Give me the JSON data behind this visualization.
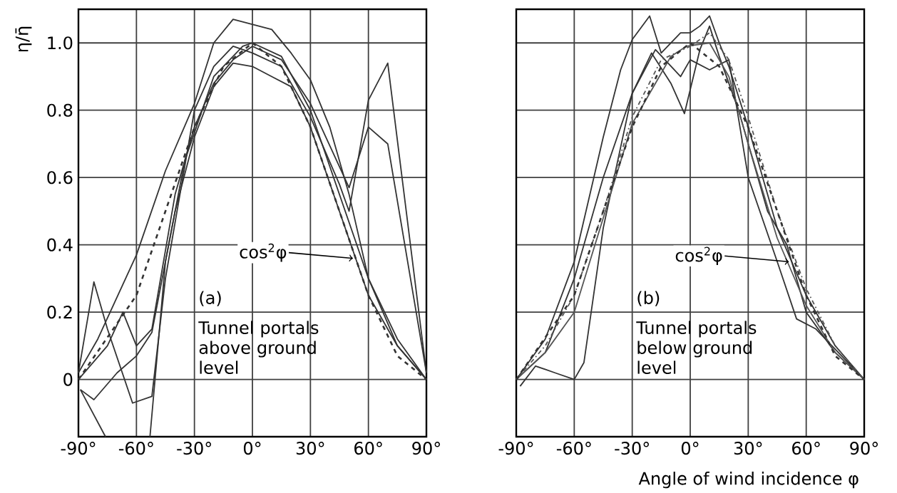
{
  "chart_data": [
    {
      "type": "line",
      "ylabel": "η/η̄",
      "xlim": [
        -90,
        90
      ],
      "ylim": [
        -0.17,
        1.1
      ],
      "xticks": [
        {
          "value": -90,
          "label": "-90°"
        },
        {
          "value": -60,
          "label": "-60°"
        },
        {
          "value": -30,
          "label": "-30°"
        },
        {
          "value": 0,
          "label": "0°"
        },
        {
          "value": 30,
          "label": "30°"
        },
        {
          "value": 60,
          "label": "60°"
        },
        {
          "value": 90,
          "label": "90°"
        }
      ],
      "yticks": [
        0,
        {
          "value": 0.2,
          "label": "0.2"
        },
        {
          "value": 0.4,
          "label": "0.4"
        },
        {
          "value": 0.6,
          "label": "0.6"
        },
        {
          "value": 0.8,
          "label": "0.8"
        },
        {
          "value": 1,
          "label": "1.0"
        }
      ],
      "grid": true,
      "series": [
        {
          "color": "#333333",
          "x": [
            -90,
            -80,
            -60,
            -45,
            -30,
            -20,
            -10,
            10,
            20,
            30,
            40,
            50,
            60,
            75,
            90
          ],
          "values": [
            0.02,
            0.12,
            0.37,
            0.62,
            0.82,
            1.0,
            1.07,
            1.04,
            0.97,
            0.89,
            0.75,
            0.55,
            0.3,
            0.12,
            0
          ]
        },
        {
          "color": "#333333",
          "x": [
            -90,
            -82,
            -75,
            -62,
            -52,
            -45,
            -30,
            -20,
            -10,
            0,
            15,
            30,
            45,
            50,
            60,
            70,
            90
          ],
          "values": [
            0.02,
            0.29,
            0.15,
            -0.07,
            -0.05,
            0.3,
            0.8,
            0.93,
            0.99,
            0.97,
            0.93,
            0.78,
            0.58,
            0.5,
            0.83,
            0.94,
            0.02
          ]
        },
        {
          "color": "#333333",
          "x": [
            -90,
            -75,
            -67,
            -60,
            -52,
            -40,
            -30,
            -20,
            -10,
            0,
            15,
            30,
            50,
            60,
            70,
            90
          ],
          "values": [
            0,
            0.1,
            0.2,
            0.1,
            0.15,
            0.55,
            0.75,
            0.88,
            0.95,
            0.99,
            0.95,
            0.82,
            0.57,
            0.75,
            0.7,
            0.02
          ]
        },
        {
          "color": "#333333",
          "x": [
            -89,
            -82,
            -70,
            -60,
            -52,
            -40,
            -30,
            -20,
            -10,
            0,
            10,
            20,
            30,
            45,
            60,
            75,
            90
          ],
          "values": [
            -0.03,
            -0.06,
            0.02,
            0.07,
            0.14,
            0.5,
            0.72,
            0.87,
            0.94,
            0.93,
            0.9,
            0.87,
            0.75,
            0.5,
            0.25,
            0.1,
            0
          ]
        },
        {
          "color": "#333333",
          "x": [
            -89,
            -76
          ],
          "values": [
            -0.03,
            -0.17
          ]
        },
        {
          "color": "#333333",
          "x": [
            -53,
            -45,
            -35,
            -20,
            -5,
            0,
            15,
            30,
            45,
            60,
            75,
            90
          ],
          "values": [
            -0.17,
            0.35,
            0.65,
            0.9,
            0.99,
            1.0,
            0.96,
            0.8,
            0.55,
            0.3,
            0.1,
            0
          ]
        },
        {
          "color": "#333333",
          "line_style": "dashed",
          "x": [
            -90,
            -60,
            -45,
            -30,
            -15,
            0,
            15,
            30,
            45,
            60,
            75,
            90
          ],
          "values": [
            0,
            0.25,
            0.5,
            0.75,
            0.93,
            1.0,
            0.93,
            0.75,
            0.5,
            0.25,
            0.07,
            0
          ]
        }
      ],
      "annotations": [
        {
          "text": "cos$^{2}$φ",
          "x": 52,
          "y": 0.36
        },
        "(a)",
        "Tunnel portals above ground level"
      ]
    },
    {
      "type": "line",
      "xlabel": "Angle of wind incidence φ",
      "xlim": [
        -90,
        90
      ],
      "ylim": [
        -0.17,
        1.1
      ],
      "tick_labels": "x",
      "xticks": [
        {
          "value": -90,
          "label": "-90°"
        },
        {
          "value": -60,
          "label": "-60°"
        },
        {
          "value": -30,
          "label": "-30°"
        },
        {
          "value": 0,
          "label": "0°"
        },
        {
          "value": 30,
          "label": "30°"
        },
        {
          "value": 60,
          "label": "60°"
        },
        {
          "value": 90,
          "label": "90°"
        }
      ],
      "yticks": [
        0,
        0.2,
        0.4,
        0.6,
        0.8,
        1
      ],
      "grid": true,
      "series": [
        {
          "color": "#333333",
          "x": [
            -90,
            -75,
            -60,
            -45,
            -36,
            -30,
            -21,
            -15,
            -5,
            0,
            5,
            10,
            15,
            20,
            30,
            45,
            60,
            75,
            90
          ],
          "values": [
            0,
            0.12,
            0.35,
            0.72,
            0.92,
            1.01,
            1.08,
            0.97,
            1.03,
            1.03,
            1.05,
            1.08,
            1.0,
            0.93,
            0.75,
            0.45,
            0.25,
            0.1,
            0
          ]
        },
        {
          "color": "#333333",
          "x": [
            -90,
            -75,
            -60,
            -45,
            -30,
            -20,
            -10,
            -3,
            5,
            10,
            15,
            25,
            40,
            50,
            60,
            75,
            90
          ],
          "values": [
            0,
            0.08,
            0.3,
            0.6,
            0.85,
            0.97,
            0.88,
            0.79,
            0.98,
            1.05,
            0.96,
            0.8,
            0.5,
            0.4,
            0.2,
            0.08,
            0
          ]
        },
        {
          "color": "#333333",
          "x": [
            -88,
            -80,
            -70,
            -60,
            -55,
            -45,
            -30,
            -18,
            -5,
            0,
            10,
            20,
            30,
            45,
            55,
            65,
            90
          ],
          "values": [
            -0.02,
            0.04,
            0.02,
            0.0,
            0.05,
            0.45,
            0.85,
            0.98,
            0.9,
            0.95,
            0.92,
            0.95,
            0.6,
            0.35,
            0.18,
            0.15,
            0
          ]
        },
        {
          "color": "#555555",
          "x": [
            -90,
            -75,
            -60,
            -45,
            -30,
            -18,
            -10,
            -2,
            10,
            20,
            30,
            45,
            60,
            75,
            90
          ],
          "values": [
            0,
            0.08,
            0.2,
            0.48,
            0.76,
            0.88,
            0.96,
            0.99,
            1.0,
            0.9,
            0.7,
            0.42,
            0.22,
            0.08,
            0
          ]
        },
        {
          "color": "#555555",
          "line_style": "dotted",
          "x": [
            -90,
            -75,
            -60,
            -45,
            -30,
            -15,
            0,
            10,
            20,
            30,
            45,
            60,
            75,
            90
          ],
          "values": [
            0,
            0.1,
            0.25,
            0.5,
            0.78,
            0.95,
            0.99,
            1.03,
            0.95,
            0.78,
            0.5,
            0.27,
            0.1,
            0
          ]
        },
        {
          "color": "#333333",
          "line_style": "dashed",
          "x": [
            -90,
            -60,
            -45,
            -30,
            -15,
            0,
            15,
            30,
            45,
            60,
            75,
            90
          ],
          "values": [
            0,
            0.25,
            0.5,
            0.75,
            0.93,
            1.0,
            0.93,
            0.75,
            0.5,
            0.25,
            0.07,
            0
          ]
        }
      ],
      "annotations": [
        {
          "text": "cos$^{2}$φ",
          "x": 51,
          "y": 0.35
        },
        "(b)",
        "Tunnel portals below ground level"
      ]
    }
  ]
}
